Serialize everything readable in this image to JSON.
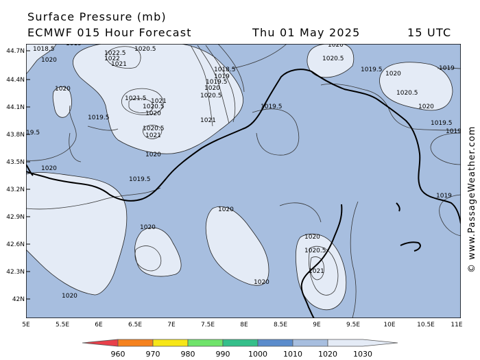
{
  "header": {
    "title": "Surface Pressure (mb)",
    "model": "ECMWF 015 Hour Forecast",
    "date": "Thu 01 May 2025",
    "time": "15 UTC"
  },
  "map": {
    "lat_labels": [
      "44.7N",
      "44.4N",
      "44.1N",
      "43.8N",
      "43.5N",
      "43.2N",
      "42.9N",
      "42.6N",
      "42.3N",
      "42N"
    ],
    "lon_labels": [
      "5E",
      "5.5E",
      "6E",
      "6.5E",
      "7E",
      "7.5E",
      "8E",
      "8.5E",
      "9E",
      "9.5E",
      "10E",
      "10.5E",
      "11E"
    ],
    "isobar_labels": [
      "1018.5",
      "1019",
      "1022.5",
      "1022",
      "1021",
      "1020.5",
      "1020",
      "1020",
      "1021.5",
      "1021",
      "1020.5",
      "1020",
      "1019.5",
      "1020.5",
      "1021",
      "1020",
      "1018.5",
      "1019",
      "1019.5",
      "1020",
      "1020.5",
      "1021",
      "1019.5",
      "19.5",
      "1020",
      "1019.5",
      "1020",
      "1020",
      "1020.5",
      "1019.5",
      "1020",
      "1020.5",
      "1020",
      "1019",
      "1019.5",
      "1019",
      "1019",
      "1020",
      "1020",
      "1020",
      "1020",
      "1020.5",
      "1021"
    ],
    "colors": {
      "sea_pressure_1010_1020": "#a7bedf",
      "pressure_1020_1030": "#e4ebf6",
      "coastline": "#000000"
    }
  },
  "legend": {
    "labels": [
      "960",
      "970",
      "980",
      "990",
      "1000",
      "1010",
      "1020",
      "1030"
    ],
    "colors": [
      "#e8404a",
      "#f5821e",
      "#f7e617",
      "#6fe36a",
      "#35bf8a",
      "#5b8ccc",
      "#a7bedf",
      "#e4ebf6"
    ]
  },
  "copyright": "© www.PassageWeather.com"
}
